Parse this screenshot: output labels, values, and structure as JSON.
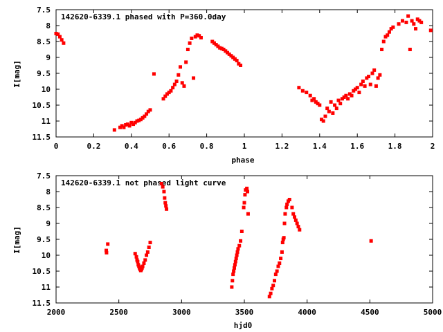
{
  "chart_data": [
    {
      "type": "scatter",
      "title": "142620-6339.1 phased with P=360.0day",
      "xlabel": "phase",
      "ylabel": "I[mag]",
      "xlim": [
        0,
        2
      ],
      "ylim": [
        11.5,
        7.5
      ],
      "y_inverted": true,
      "xticks": [
        "0",
        "0.2",
        "0.4",
        "0.6",
        "0.8",
        "1",
        "1.2",
        "1.4",
        "1.6",
        "1.8",
        "2"
      ],
      "yticks": [
        "7.5",
        "8",
        "8.5",
        "9",
        "9.5",
        "10",
        "10.5",
        "11",
        "11.5"
      ],
      "grid": false,
      "marker_color": "#ff0000",
      "points": [
        [
          0.0,
          8.25
        ],
        [
          0.01,
          8.27
        ],
        [
          0.02,
          8.35
        ],
        [
          0.03,
          8.45
        ],
        [
          0.04,
          8.55
        ],
        [
          0.31,
          11.28
        ],
        [
          0.34,
          11.2
        ],
        [
          0.35,
          11.15
        ],
        [
          0.36,
          11.2
        ],
        [
          0.37,
          11.12
        ],
        [
          0.38,
          11.1
        ],
        [
          0.39,
          11.15
        ],
        [
          0.4,
          11.05
        ],
        [
          0.41,
          11.1
        ],
        [
          0.42,
          11.05
        ],
        [
          0.43,
          11.0
        ],
        [
          0.44,
          10.98
        ],
        [
          0.45,
          10.95
        ],
        [
          0.46,
          10.9
        ],
        [
          0.47,
          10.85
        ],
        [
          0.48,
          10.78
        ],
        [
          0.49,
          10.7
        ],
        [
          0.5,
          10.65
        ],
        [
          0.52,
          9.52
        ],
        [
          0.57,
          10.3
        ],
        [
          0.58,
          10.22
        ],
        [
          0.59,
          10.15
        ],
        [
          0.6,
          10.1
        ],
        [
          0.61,
          10.05
        ],
        [
          0.62,
          9.95
        ],
        [
          0.63,
          9.85
        ],
        [
          0.64,
          9.75
        ],
        [
          0.65,
          9.55
        ],
        [
          0.66,
          9.3
        ],
        [
          0.67,
          9.8
        ],
        [
          0.68,
          9.9
        ],
        [
          0.69,
          9.15
        ],
        [
          0.7,
          8.75
        ],
        [
          0.71,
          8.55
        ],
        [
          0.72,
          8.4
        ],
        [
          0.73,
          9.65
        ],
        [
          0.74,
          8.35
        ],
        [
          0.75,
          8.3
        ],
        [
          0.76,
          8.32
        ],
        [
          0.77,
          8.38
        ],
        [
          0.83,
          8.5
        ],
        [
          0.84,
          8.55
        ],
        [
          0.85,
          8.6
        ],
        [
          0.86,
          8.65
        ],
        [
          0.87,
          8.7
        ],
        [
          0.88,
          8.72
        ],
        [
          0.89,
          8.75
        ],
        [
          0.9,
          8.8
        ],
        [
          0.91,
          8.85
        ],
        [
          0.92,
          8.9
        ],
        [
          0.93,
          8.95
        ],
        [
          0.94,
          9.0
        ],
        [
          0.95,
          9.05
        ],
        [
          0.96,
          9.1
        ],
        [
          0.97,
          9.2
        ],
        [
          0.98,
          9.25
        ],
        [
          1.29,
          9.95
        ],
        [
          1.31,
          10.05
        ],
        [
          1.33,
          10.1
        ],
        [
          1.35,
          10.2
        ],
        [
          1.36,
          10.35
        ],
        [
          1.37,
          10.3
        ],
        [
          1.38,
          10.4
        ],
        [
          1.39,
          10.45
        ],
        [
          1.4,
          10.5
        ],
        [
          1.41,
          10.95
        ],
        [
          1.42,
          11.0
        ],
        [
          1.43,
          10.85
        ],
        [
          1.44,
          10.6
        ],
        [
          1.45,
          10.7
        ],
        [
          1.46,
          10.4
        ],
        [
          1.47,
          10.75
        ],
        [
          1.48,
          10.5
        ],
        [
          1.49,
          10.6
        ],
        [
          1.5,
          10.35
        ],
        [
          1.51,
          10.45
        ],
        [
          1.52,
          10.3
        ],
        [
          1.53,
          10.25
        ],
        [
          1.54,
          10.2
        ],
        [
          1.55,
          10.3
        ],
        [
          1.56,
          10.15
        ],
        [
          1.57,
          10.2
        ],
        [
          1.58,
          10.05
        ],
        [
          1.59,
          10.0
        ],
        [
          1.6,
          9.95
        ],
        [
          1.61,
          10.1
        ],
        [
          1.62,
          9.85
        ],
        [
          1.63,
          9.75
        ],
        [
          1.64,
          9.9
        ],
        [
          1.65,
          9.65
        ],
        [
          1.66,
          9.6
        ],
        [
          1.67,
          9.85
        ],
        [
          1.68,
          9.5
        ],
        [
          1.69,
          9.4
        ],
        [
          1.7,
          9.9
        ],
        [
          1.71,
          9.65
        ],
        [
          1.72,
          9.55
        ],
        [
          1.73,
          8.75
        ],
        [
          1.74,
          8.5
        ],
        [
          1.75,
          8.35
        ],
        [
          1.76,
          8.3
        ],
        [
          1.77,
          8.2
        ],
        [
          1.78,
          8.1
        ],
        [
          1.79,
          8.05
        ],
        [
          1.82,
          7.95
        ],
        [
          1.84,
          7.85
        ],
        [
          1.86,
          7.9
        ],
        [
          1.87,
          7.7
        ],
        [
          1.88,
          8.75
        ],
        [
          1.89,
          7.85
        ],
        [
          1.9,
          7.95
        ],
        [
          1.91,
          8.1
        ],
        [
          1.92,
          7.8
        ],
        [
          1.93,
          7.85
        ],
        [
          1.94,
          7.9
        ],
        [
          1.99,
          8.15
        ]
      ]
    },
    {
      "type": "scatter",
      "title": "142620-6339.1 not phased light curve",
      "xlabel": "hjd0",
      "ylabel": "I[mag]",
      "xlim": [
        2000,
        5000
      ],
      "ylim": [
        11.5,
        7.5
      ],
      "y_inverted": true,
      "xticks": [
        "2000",
        "2500",
        "3000",
        "3500",
        "4000",
        "4500",
        "5000"
      ],
      "yticks": [
        "7.5",
        "8",
        "8.5",
        "9",
        "9.5",
        "10",
        "10.5",
        "11",
        "11.5"
      ],
      "grid": false,
      "marker_color": "#ff0000",
      "points": [
        [
          2400,
          9.85
        ],
        [
          2402,
          9.92
        ],
        [
          2412,
          9.65
        ],
        [
          2630,
          9.95
        ],
        [
          2640,
          10.05
        ],
        [
          2645,
          10.15
        ],
        [
          2650,
          10.2
        ],
        [
          2655,
          10.3
        ],
        [
          2660,
          10.35
        ],
        [
          2665,
          10.4
        ],
        [
          2670,
          10.45
        ],
        [
          2675,
          10.48
        ],
        [
          2680,
          10.45
        ],
        [
          2685,
          10.4
        ],
        [
          2690,
          10.35
        ],
        [
          2700,
          10.25
        ],
        [
          2710,
          10.15
        ],
        [
          2720,
          10.0
        ],
        [
          2730,
          9.9
        ],
        [
          2740,
          9.75
        ],
        [
          2750,
          9.6
        ],
        [
          2840,
          7.75
        ],
        [
          2850,
          7.85
        ],
        [
          2860,
          8.0
        ],
        [
          2865,
          8.2
        ],
        [
          2870,
          8.35
        ],
        [
          2875,
          8.45
        ],
        [
          2880,
          8.55
        ],
        [
          3400,
          11.0
        ],
        [
          3405,
          10.8
        ],
        [
          3410,
          10.6
        ],
        [
          3415,
          10.5
        ],
        [
          3420,
          10.4
        ],
        [
          3425,
          10.3
        ],
        [
          3430,
          10.2
        ],
        [
          3435,
          10.1
        ],
        [
          3440,
          10.0
        ],
        [
          3445,
          9.9
        ],
        [
          3450,
          9.8
        ],
        [
          3460,
          9.7
        ],
        [
          3470,
          9.55
        ],
        [
          3480,
          9.25
        ],
        [
          3495,
          8.5
        ],
        [
          3500,
          8.35
        ],
        [
          3505,
          8.1
        ],
        [
          3510,
          7.95
        ],
        [
          3520,
          7.9
        ],
        [
          3525,
          8.0
        ],
        [
          3530,
          8.7
        ],
        [
          3700,
          11.3
        ],
        [
          3710,
          11.2
        ],
        [
          3720,
          11.05
        ],
        [
          3730,
          10.95
        ],
        [
          3740,
          10.8
        ],
        [
          3750,
          10.6
        ],
        [
          3760,
          10.5
        ],
        [
          3770,
          10.35
        ],
        [
          3780,
          10.25
        ],
        [
          3790,
          10.1
        ],
        [
          3800,
          9.9
        ],
        [
          3805,
          9.6
        ],
        [
          3810,
          9.5
        ],
        [
          3815,
          9.45
        ],
        [
          3820,
          9.0
        ],
        [
          3825,
          8.7
        ],
        [
          3835,
          8.5
        ],
        [
          3840,
          8.4
        ],
        [
          3850,
          8.3
        ],
        [
          3860,
          8.25
        ],
        [
          3880,
          8.5
        ],
        [
          3890,
          8.7
        ],
        [
          3900,
          8.8
        ],
        [
          3910,
          8.9
        ],
        [
          3920,
          9.0
        ],
        [
          3930,
          9.1
        ],
        [
          3940,
          9.2
        ],
        [
          4510,
          9.55
        ]
      ]
    }
  ]
}
